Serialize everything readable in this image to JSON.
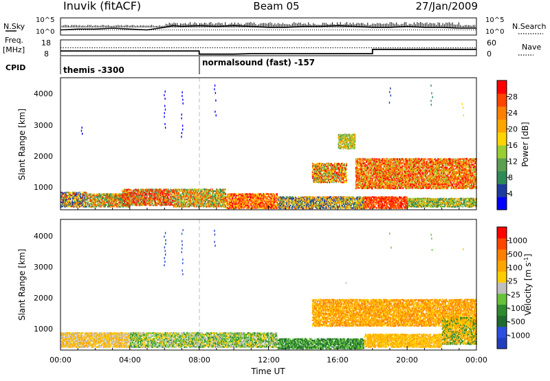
{
  "header": {
    "station": "Inuvik (fitACF)",
    "beam": "Beam 05",
    "date": "27/Jan/2009"
  },
  "top_panels": {
    "nsky_label": "N.Sky",
    "nsky_ticks": [
      "10^5",
      "10^0"
    ],
    "nsearch_label": "N.Search",
    "nsearch_ticks": [
      "10^5",
      "10^0"
    ],
    "freq_label_1": "Freq.",
    "freq_label_2": "[MHz]",
    "freq_ticks": [
      "18",
      "8"
    ],
    "nave_label": "Nave",
    "nave_ticks": [
      "60",
      "0"
    ],
    "cpid_label": "CPID",
    "cpid_entries": [
      {
        "text": "themis -3300",
        "start_hour": 0
      },
      {
        "text": "normalsound (fast) -157",
        "start_hour": 8
      }
    ]
  },
  "colors": {
    "power_scale": [
      "#0000ff",
      "#1e3c9e",
      "#2e8b57",
      "#5aa050",
      "#9acd32",
      "#ffd400",
      "#ffa500",
      "#ff7f00",
      "#ff4500",
      "#ff0000"
    ],
    "velocity_scale": [
      "#1f3fbf",
      "#2b4fe0",
      "#1e6b2e",
      "#2e8b2e",
      "#66c23a",
      "#bfbfbf",
      "#ffcc00",
      "#ffa500",
      "#ff7f00",
      "#ff4500",
      "#ff0000"
    ]
  },
  "chart_data": [
    {
      "type": "line",
      "panel": "N.Sky / N.Search",
      "x_range_hours": [
        0,
        24
      ],
      "series": [
        {
          "name": "N.Sky",
          "style": "solid",
          "x": [
            0,
            1,
            2,
            3,
            4,
            5,
            6,
            6.5,
            7,
            8,
            9,
            10,
            11,
            12,
            13,
            14,
            15,
            16,
            17,
            18,
            19,
            20,
            21,
            22,
            23,
            24
          ],
          "y": [
            0.3,
            0.35,
            0.35,
            0.4,
            0.35,
            0.3,
            0.45,
            0.55,
            0.5,
            0.55,
            0.5,
            0.55,
            0.5,
            0.45,
            0.45,
            0.5,
            0.5,
            0.55,
            0.5,
            0.45,
            0.45,
            0.5,
            0.45,
            0.45,
            0.4,
            0.4
          ]
        },
        {
          "name": "N.Search",
          "style": "dotted",
          "x": [
            0,
            24
          ],
          "y": [
            0.3,
            0.3
          ]
        }
      ]
    },
    {
      "type": "line",
      "panel": "Freq. / Nave",
      "x_range_hours": [
        0,
        24
      ],
      "series": [
        {
          "name": "Freq. [MHz]",
          "x": [
            0,
            8,
            8,
            10,
            11,
            11.5,
            18,
            18,
            24
          ],
          "y": [
            11,
            11,
            9,
            9,
            9.3,
            9.3,
            9.3,
            12,
            12
          ]
        },
        {
          "name": "Nave",
          "style": "dotted",
          "x": [
            0,
            24
          ],
          "y": [
            30,
            30
          ]
        }
      ]
    },
    {
      "type": "heatmap",
      "panel": "Power",
      "xlabel": "",
      "ylabel": "Slant Range [km]",
      "x_ticks": [],
      "y_ticks": [
        "1000",
        "2000",
        "3000",
        "4000"
      ],
      "ylim": [
        180,
        4500
      ],
      "colorbar_label": "Power [dB]",
      "colorbar_ticks": [
        "4",
        "8",
        "12",
        "16",
        "20",
        "24",
        "28"
      ],
      "bands": [
        {
          "x0": 0,
          "x1": 1.5,
          "y0": 300,
          "y1": 800,
          "levels": [
            1,
            3,
            5,
            8
          ]
        },
        {
          "x0": 1.5,
          "x1": 4,
          "y0": 300,
          "y1": 750,
          "levels": [
            2,
            4,
            6,
            8
          ]
        },
        {
          "x0": 3.5,
          "x1": 6.5,
          "y0": 350,
          "y1": 900,
          "levels": [
            3,
            6,
            8,
            9
          ]
        },
        {
          "x0": 6.5,
          "x1": 9.5,
          "y0": 300,
          "y1": 900,
          "levels": [
            2,
            4,
            6,
            8
          ]
        },
        {
          "x0": 9.5,
          "x1": 12.5,
          "y0": 250,
          "y1": 750,
          "levels": [
            5,
            7,
            8,
            9
          ]
        },
        {
          "x0": 12.5,
          "x1": 17.5,
          "y0": 250,
          "y1": 650,
          "levels": [
            1,
            3,
            5,
            7
          ]
        },
        {
          "x0": 14.5,
          "x1": 16.5,
          "y0": 1100,
          "y1": 1750,
          "levels": [
            3,
            5,
            7,
            9
          ]
        },
        {
          "x0": 16,
          "x1": 17,
          "y0": 2200,
          "y1": 2700,
          "levels": [
            3,
            4,
            6
          ]
        },
        {
          "x0": 17,
          "x1": 24,
          "y0": 900,
          "y1": 1900,
          "levels": [
            4,
            6,
            7,
            8,
            9
          ]
        },
        {
          "x0": 17.5,
          "x1": 20,
          "y0": 250,
          "y1": 650,
          "levels": [
            7,
            8,
            9
          ]
        },
        {
          "x0": 20,
          "x1": 24,
          "y0": 300,
          "y1": 600,
          "levels": [
            2,
            4,
            6
          ]
        }
      ],
      "streaks": [
        {
          "x": 6.0,
          "y0": 2900,
          "y1": 4200,
          "level": 0
        },
        {
          "x": 7.0,
          "y0": 2600,
          "y1": 4300,
          "level": 0
        },
        {
          "x": 8.9,
          "y0": 3300,
          "y1": 4400,
          "level": 0
        },
        {
          "x": 19.0,
          "y0": 3600,
          "y1": 4300,
          "level": 1
        },
        {
          "x": 21.4,
          "y0": 3400,
          "y1": 4400,
          "level": 2
        },
        {
          "x": 23.2,
          "y0": 3300,
          "y1": 3800,
          "level": 5
        },
        {
          "x": 1.2,
          "y0": 2700,
          "y1": 3000,
          "level": 0
        }
      ]
    },
    {
      "type": "heatmap",
      "panel": "Velocity",
      "xlabel": "Time UT",
      "ylabel": "Slant Range [km]",
      "x_ticks": [
        "00:00",
        "04:00",
        "08:00",
        "12:00",
        "16:00",
        "20:00",
        "00:00"
      ],
      "y_ticks": [
        "1000",
        "2000",
        "3000",
        "4000"
      ],
      "ylim": [
        180,
        4500
      ],
      "colorbar_label": "Velocity [m s^-1]",
      "colorbar_ticks": [
        "-1000",
        "-500",
        "-100",
        "-25",
        "25",
        "100",
        "500",
        "1000"
      ],
      "bands": [
        {
          "x0": 0,
          "x1": 4,
          "y0": 300,
          "y1": 800,
          "levels": [
            5,
            6,
            7
          ]
        },
        {
          "x0": 4,
          "x1": 12.5,
          "y0": 300,
          "y1": 800,
          "levels": [
            3,
            4,
            5,
            6
          ]
        },
        {
          "x0": 12.5,
          "x1": 17.5,
          "y0": 250,
          "y1": 600,
          "levels": [
            2,
            3,
            4
          ]
        },
        {
          "x0": 14.5,
          "x1": 24,
          "y0": 1000,
          "y1": 1900,
          "levels": [
            6,
            7,
            8
          ]
        },
        {
          "x0": 17.5,
          "x1": 22,
          "y0": 300,
          "y1": 750,
          "levels": [
            6,
            7
          ]
        },
        {
          "x0": 22,
          "x1": 24,
          "y0": 400,
          "y1": 1300,
          "levels": [
            3,
            6,
            7
          ]
        }
      ],
      "streaks": [
        {
          "x": 6.0,
          "y0": 2900,
          "y1": 4200,
          "level": 0
        },
        {
          "x": 7.0,
          "y0": 2600,
          "y1": 4300,
          "level": 1
        },
        {
          "x": 8.9,
          "y0": 3300,
          "y1": 4400,
          "level": 0
        },
        {
          "x": 16.5,
          "y0": 2300,
          "y1": 2700,
          "level": 5
        },
        {
          "x": 19.0,
          "y0": 3600,
          "y1": 4300,
          "level": 4
        },
        {
          "x": 21.4,
          "y0": 3400,
          "y1": 4400,
          "level": 4
        },
        {
          "x": 23.2,
          "y0": 3300,
          "y1": 3800,
          "level": 6
        }
      ]
    }
  ]
}
